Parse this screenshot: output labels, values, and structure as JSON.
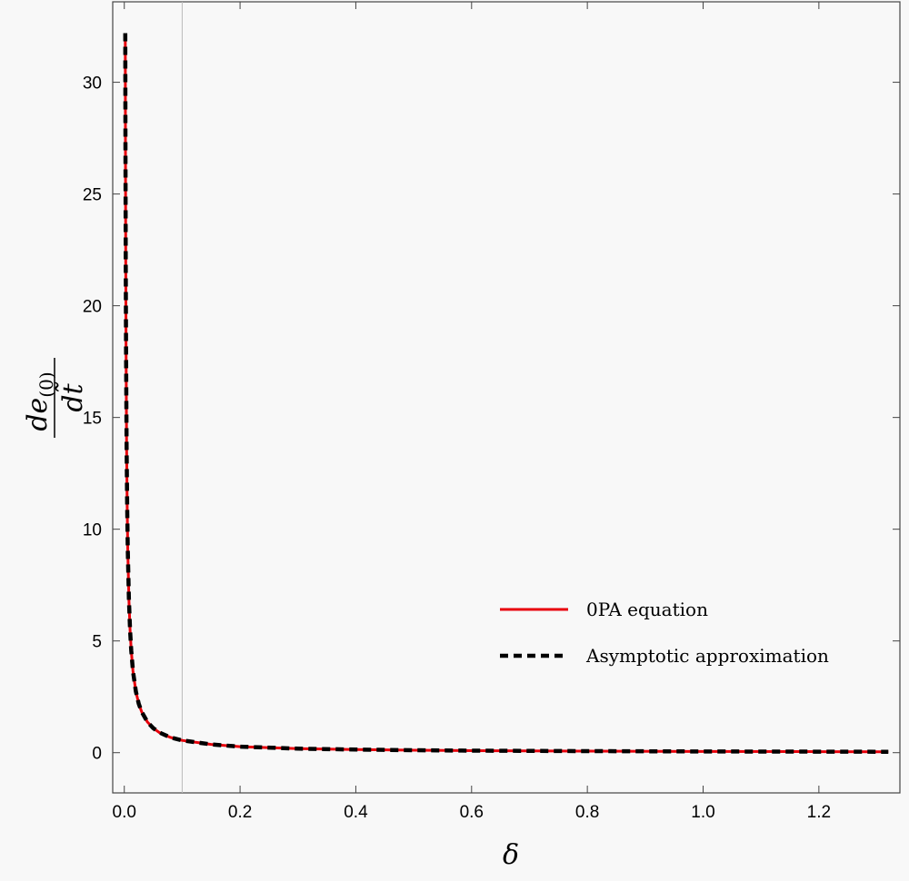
{
  "chart_data": {
    "type": "line",
    "xlabel": "δ",
    "ylabel": {
      "numerator": "de",
      "subscript": "(0)",
      "denominator": "dt̃"
    },
    "xlim": [
      -0.02,
      1.34
    ],
    "ylim": [
      -1.8,
      33.6
    ],
    "xticks": [
      {
        "value": 0.0,
        "label": "0.0"
      },
      {
        "value": 0.2,
        "label": "0.2"
      },
      {
        "value": 0.4,
        "label": "0.4"
      },
      {
        "value": 0.6,
        "label": "0.6"
      },
      {
        "value": 0.8,
        "label": "0.8"
      },
      {
        "value": 1.0,
        "label": "1.0"
      },
      {
        "value": 1.2,
        "label": "1.2"
      }
    ],
    "yticks": [
      {
        "value": 0,
        "label": "0"
      },
      {
        "value": 5,
        "label": "5"
      },
      {
        "value": 10,
        "label": "10"
      },
      {
        "value": 15,
        "label": "15"
      },
      {
        "value": 20,
        "label": "20"
      },
      {
        "value": 25,
        "label": "25"
      },
      {
        "value": 30,
        "label": "30"
      }
    ],
    "reference_line_x": 0.1,
    "legend_position": "lower-right",
    "series": [
      {
        "name": "0PA equation",
        "color": "#e8000b",
        "style": "solid",
        "x": [
          0.0017,
          0.002,
          0.0025,
          0.003,
          0.004,
          0.005,
          0.006,
          0.008,
          0.01,
          0.012,
          0.015,
          0.02,
          0.025,
          0.03,
          0.04,
          0.05,
          0.06,
          0.08,
          0.1,
          0.15,
          0.2,
          0.3,
          0.4,
          0.5,
          0.6,
          0.8,
          1.0,
          1.2,
          1.32
        ],
        "y": [
          32.2,
          27.4,
          21.9,
          18.3,
          13.7,
          11.0,
          9.1,
          6.85,
          5.48,
          4.57,
          3.65,
          2.74,
          2.19,
          1.83,
          1.37,
          1.1,
          0.91,
          0.68,
          0.55,
          0.37,
          0.27,
          0.18,
          0.14,
          0.11,
          0.09,
          0.07,
          0.055,
          0.046,
          0.04
        ]
      },
      {
        "name": "Asymptotic approximation",
        "color": "#000000",
        "style": "dashed",
        "x": [
          0.0017,
          0.002,
          0.0025,
          0.003,
          0.004,
          0.005,
          0.006,
          0.008,
          0.01,
          0.012,
          0.015,
          0.02,
          0.025,
          0.03,
          0.04,
          0.05,
          0.06,
          0.08,
          0.1,
          0.15,
          0.2,
          0.3,
          0.4,
          0.5,
          0.6,
          0.8,
          1.0,
          1.2,
          1.32
        ],
        "y": [
          32.2,
          27.4,
          21.9,
          18.3,
          13.7,
          11.0,
          9.1,
          6.85,
          5.48,
          4.57,
          3.65,
          2.74,
          2.19,
          1.83,
          1.37,
          1.1,
          0.91,
          0.68,
          0.55,
          0.37,
          0.27,
          0.18,
          0.14,
          0.11,
          0.09,
          0.07,
          0.055,
          0.046,
          0.04
        ]
      }
    ]
  }
}
